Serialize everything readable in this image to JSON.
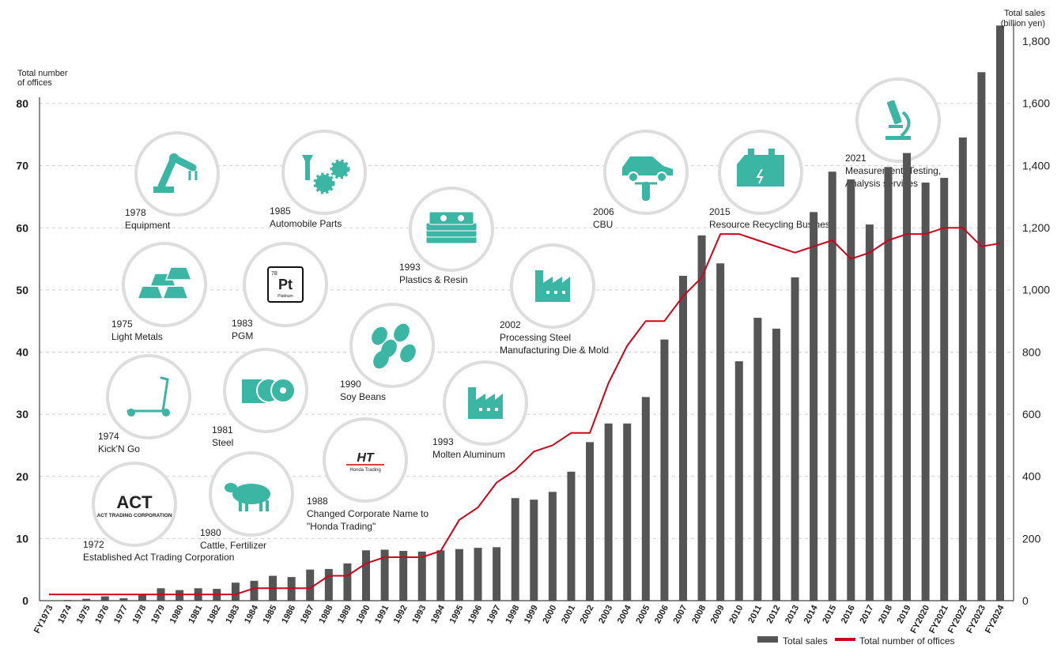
{
  "chart_data": {
    "type": "bar",
    "left_axis": {
      "label_line1": "Total number",
      "label_line2": "of offices",
      "ylim": [
        0,
        80
      ],
      "ticks": [
        "0",
        "10",
        "20",
        "30",
        "40",
        "50",
        "60",
        "70",
        "80"
      ]
    },
    "right_axis": {
      "label_line1": "Total sales",
      "label_line2": "(billion yen)",
      "ylim": [
        0,
        1800
      ],
      "ticks": [
        "0",
        "200",
        "400",
        "600",
        "800",
        "1,000",
        "1,200",
        "1,400",
        "1,600",
        "1,800"
      ]
    },
    "categories": [
      "FY1973",
      "1974",
      "1975",
      "1976",
      "1977",
      "1978",
      "1979",
      "1980",
      "1981",
      "1982",
      "1983",
      "1984",
      "1985",
      "1986",
      "1987",
      "1988",
      "1989",
      "1990",
      "1991",
      "1992",
      "1993",
      "1994",
      "1995",
      "1996",
      "1997",
      "1998",
      "1999",
      "2000",
      "2001",
      "2002",
      "2003",
      "2004",
      "2005",
      "2006",
      "2007",
      "2008",
      "2009",
      "2010",
      "2011",
      "2012",
      "2013",
      "2014",
      "2015",
      "2016",
      "2017",
      "2018",
      "2019",
      "FY2020",
      "FY2021",
      "FY2022",
      "FY2023",
      "FY2024"
    ],
    "series": [
      {
        "name": "Total sales",
        "kind": "bar",
        "axis": "right",
        "color": "#555555",
        "values": [
          0,
          2,
          6,
          14,
          8,
          20,
          40,
          34,
          40,
          38,
          58,
          64,
          80,
          76,
          100,
          102,
          120,
          162,
          164,
          160,
          158,
          162,
          166,
          170,
          172,
          330,
          325,
          350,
          415,
          510,
          570,
          570,
          655,
          840,
          1045,
          1175,
          1085,
          770,
          910,
          875,
          1040,
          1250,
          1380,
          1355,
          1210,
          1395,
          1440,
          1345,
          1360,
          1490,
          1700,
          1850
        ]
      },
      {
        "name": "Total number of offices",
        "kind": "line",
        "axis": "left",
        "color": "#d0021b",
        "values": [
          1,
          1,
          1,
          1,
          1,
          1,
          1,
          1,
          1,
          1,
          1,
          2,
          2,
          2,
          2,
          4,
          4,
          6,
          7,
          7,
          7,
          8,
          13,
          15,
          19,
          21,
          24,
          25,
          27,
          27,
          35,
          41,
          45,
          45,
          49,
          52,
          59,
          59,
          58,
          57,
          56,
          57,
          58,
          55,
          56,
          58,
          59,
          59,
          60,
          60,
          57,
          57.5
        ]
      }
    ],
    "milestones": [
      {
        "year": "1972",
        "text": "Established Act Trading Corporation",
        "icon": "act-logo",
        "logo_main": "ACT",
        "logo_sub": "ACT TRADING CORPORATION"
      },
      {
        "year": "1974",
        "text": "Kick'N Go",
        "icon": "scooter-icon"
      },
      {
        "year": "1975",
        "text": "Light Metals",
        "icon": "metal-ingots-icon"
      },
      {
        "year": "1978",
        "text": "Equipment",
        "icon": "robot-arm-icon"
      },
      {
        "year": "1980",
        "text": "Cattle, Fertilizer",
        "icon": "cow-icon"
      },
      {
        "year": "1981",
        "text": "Steel",
        "icon": "steel-coil-icon"
      },
      {
        "year": "1983",
        "text": "PGM",
        "icon": "platinum-icon",
        "element_number": "78",
        "element_symbol": "Pt",
        "element_name": "Platinum"
      },
      {
        "year": "1985",
        "text": "Automobile Parts",
        "icon": "bolt-gears-icon"
      },
      {
        "year": "1988",
        "text": "Changed Corporate Name to",
        "text2": "\"Honda Trading\"",
        "icon": "ht-logo",
        "logo_main": "HT",
        "logo_sub": "Honda Trading"
      },
      {
        "year": "1990",
        "text": "Soy Beans",
        "icon": "soy-beans-icon"
      },
      {
        "year": "1993",
        "text": "Plastics & Resin",
        "icon": "resin-pellets-icon"
      },
      {
        "year": "1993",
        "text": "Molten Aluminum",
        "icon": "factory-icon"
      },
      {
        "year": "2002",
        "text": "Processing Steel",
        "text2": "Manufacturing Die & Mold",
        "icon": "factory-icon"
      },
      {
        "year": "2006",
        "text": "CBU",
        "icon": "car-motorcycle-icon"
      },
      {
        "year": "2015",
        "text": "Resource Recycling Business",
        "icon": "battery-icon"
      },
      {
        "year": "2021",
        "text": "Measurement, Testing,",
        "text2": "Analysis services",
        "icon": "microscope-icon"
      }
    ],
    "legend": {
      "position": "bottom-right",
      "items": [
        "Total sales",
        "Total number of offices"
      ]
    },
    "grid": true,
    "colors": {
      "icon": "#3bb5a4",
      "circle": "#dddddd",
      "bar": "#555555",
      "line": "#d0021b"
    }
  }
}
